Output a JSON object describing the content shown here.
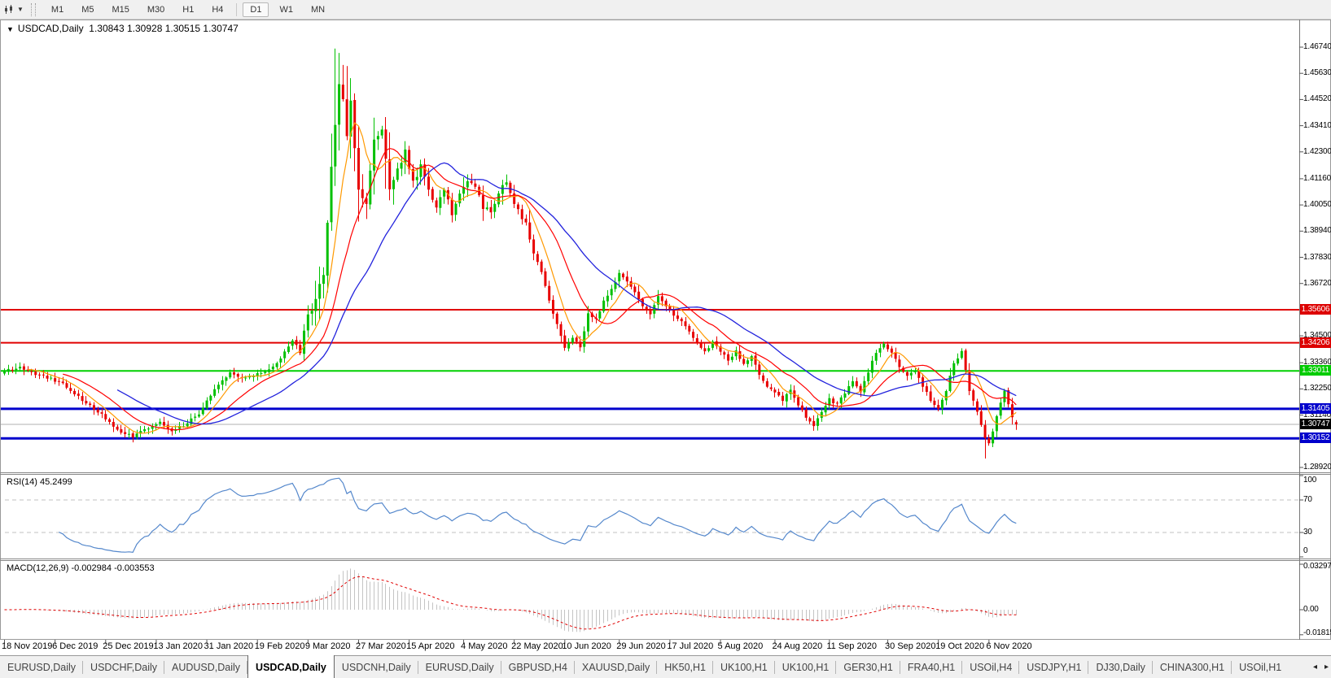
{
  "toolbar": {
    "chart_tool_icon": "chart-type-icon",
    "timeframes": [
      "M1",
      "M5",
      "M15",
      "M30",
      "H1",
      "H4",
      "D1",
      "W1",
      "MN"
    ],
    "active_timeframe": "D1"
  },
  "window": {
    "title_symbol": "USDCAD,Daily",
    "title_ohlc": "1.30843 1.30928 1.30515 1.30747"
  },
  "rsi_panel": {
    "label": "RSI(14) 45.2499"
  },
  "macd_panel": {
    "label": "MACD(12,26,9) -0.002984 -0.003553"
  },
  "colors": {
    "candle_up": "#00c000",
    "candle_down": "#e80000",
    "ma_fast": "#ff9900",
    "ma_mid": "#ff0000",
    "ma_slow": "#2323dd",
    "rsi_line": "#5588cc",
    "macd_hist": "#c4c4c4",
    "macd_signal": "#e00000",
    "level_red": "#e00000",
    "level_green": "#00d000",
    "level_blue": "#0000cc",
    "current_price_line": "#b0b0b0"
  },
  "chart_data": {
    "type": "candlestick",
    "symbol": "USDCAD",
    "timeframe": "Daily",
    "last_ohlc": {
      "open": 1.30843,
      "high": 1.30928,
      "low": 1.30515,
      "close": 1.30747
    },
    "y_axis_ticks": [
      "1.46740",
      "1.45630",
      "1.44520",
      "1.43410",
      "1.42300",
      "1.41160",
      "1.40050",
      "1.38940",
      "1.37830",
      "1.36720",
      "1.34500",
      "1.33360",
      "1.32250",
      "1.31140",
      "1.30030",
      "1.28920"
    ],
    "price_badges": [
      {
        "label": "1.35606",
        "bg": "#dd0000"
      },
      {
        "label": "1.34206",
        "bg": "#dd0000"
      },
      {
        "label": "1.33011",
        "bg": "#00cc00"
      },
      {
        "label": "1.31405",
        "bg": "#0000cc"
      },
      {
        "label": "1.30747",
        "bg": "#000000"
      },
      {
        "label": "1.30152",
        "bg": "#0000cc"
      }
    ],
    "horizontal_levels": [
      {
        "value": 1.35606,
        "color": "#e00000",
        "width": 2
      },
      {
        "value": 1.34206,
        "color": "#e00000",
        "width": 2
      },
      {
        "value": 1.33011,
        "color": "#00d000",
        "width": 2
      },
      {
        "value": 1.31405,
        "color": "#0000cc",
        "width": 3
      },
      {
        "value": 1.30747,
        "color": "#b0b0b0",
        "width": 1
      },
      {
        "value": 1.30152,
        "color": "#0000cc",
        "width": 3
      }
    ],
    "x_dates": [
      {
        "label": "18 Nov 2019",
        "i": 0
      },
      {
        "label": "6 Dec 2019",
        "i": 13
      },
      {
        "label": "25 Dec 2019",
        "i": 26
      },
      {
        "label": "13 Jan 2020",
        "i": 39
      },
      {
        "label": "31 Jan 2020",
        "i": 52
      },
      {
        "label": "19 Feb 2020",
        "i": 65
      },
      {
        "label": "9 Mar 2020",
        "i": 78
      },
      {
        "label": "27 Mar 2020",
        "i": 91
      },
      {
        "label": "15 Apr 2020",
        "i": 104
      },
      {
        "label": "4 May 2020",
        "i": 118
      },
      {
        "label": "22 May 2020",
        "i": 131
      },
      {
        "label": "10 Jun 2020",
        "i": 144
      },
      {
        "label": "29 Jun 2020",
        "i": 158
      },
      {
        "label": "17 Jul 2020",
        "i": 171
      },
      {
        "label": "5 Aug 2020",
        "i": 184
      },
      {
        "label": "24 Aug 2020",
        "i": 198
      },
      {
        "label": "11 Sep 2020",
        "i": 212
      },
      {
        "label": "30 Sep 2020",
        "i": 227
      },
      {
        "label": "19 Oct 2020",
        "i": 240
      },
      {
        "label": "6 Nov 2020",
        "i": 253
      }
    ],
    "close_anchors": [
      [
        0,
        1.33
      ],
      [
        4,
        1.3315
      ],
      [
        8,
        1.329
      ],
      [
        12,
        1.327
      ],
      [
        16,
        1.3235
      ],
      [
        20,
        1.318
      ],
      [
        24,
        1.313
      ],
      [
        27,
        1.3085
      ],
      [
        30,
        1.304
      ],
      [
        33,
        1.3025
      ],
      [
        36,
        1.3055
      ],
      [
        40,
        1.308
      ],
      [
        43,
        1.3045
      ],
      [
        46,
        1.307
      ],
      [
        50,
        1.312
      ],
      [
        54,
        1.3225
      ],
      [
        58,
        1.329
      ],
      [
        62,
        1.327
      ],
      [
        66,
        1.3295
      ],
      [
        70,
        1.333
      ],
      [
        74,
        1.343
      ],
      [
        76,
        1.338
      ],
      [
        78,
        1.356
      ],
      [
        80,
        1.359
      ],
      [
        82,
        1.372
      ],
      [
        84,
        1.418
      ],
      [
        86,
        1.45
      ],
      [
        87,
        1.445
      ],
      [
        88,
        1.43
      ],
      [
        89,
        1.443
      ],
      [
        91,
        1.408
      ],
      [
        93,
        1.402
      ],
      [
        95,
        1.428
      ],
      [
        97,
        1.433
      ],
      [
        99,
        1.409
      ],
      [
        101,
        1.415
      ],
      [
        103,
        1.423
      ],
      [
        105,
        1.41
      ],
      [
        107,
        1.417
      ],
      [
        109,
        1.406
      ],
      [
        111,
        1.399
      ],
      [
        113,
        1.407
      ],
      [
        115,
        1.397
      ],
      [
        117,
        1.406
      ],
      [
        119,
        1.411
      ],
      [
        121,
        1.409
      ],
      [
        123,
        1.4
      ],
      [
        125,
        1.397
      ],
      [
        127,
        1.405
      ],
      [
        129,
        1.411
      ],
      [
        131,
        1.401
      ],
      [
        134,
        1.392
      ],
      [
        136,
        1.38
      ],
      [
        138,
        1.372
      ],
      [
        140,
        1.36
      ],
      [
        142,
        1.35
      ],
      [
        144,
        1.34
      ],
      [
        146,
        1.344
      ],
      [
        148,
        1.34
      ],
      [
        150,
        1.354
      ],
      [
        152,
        1.352
      ],
      [
        154,
        1.36
      ],
      [
        156,
        1.365
      ],
      [
        158,
        1.371
      ],
      [
        160,
        1.368
      ],
      [
        162,
        1.363
      ],
      [
        164,
        1.3575
      ],
      [
        166,
        1.3545
      ],
      [
        168,
        1.362
      ],
      [
        170,
        1.3575
      ],
      [
        172,
        1.354
      ],
      [
        174,
        1.351
      ],
      [
        176,
        1.3465
      ],
      [
        178,
        1.3415
      ],
      [
        180,
        1.338
      ],
      [
        182,
        1.342
      ],
      [
        184,
        1.3385
      ],
      [
        186,
        1.335
      ],
      [
        188,
        1.3385
      ],
      [
        190,
        1.333
      ],
      [
        192,
        1.336
      ],
      [
        194,
        1.329
      ],
      [
        196,
        1.324
      ],
      [
        198,
        1.3215
      ],
      [
        200,
        1.318
      ],
      [
        202,
        1.3225
      ],
      [
        204,
        1.3155
      ],
      [
        206,
        1.3105
      ],
      [
        208,
        1.3065
      ],
      [
        210,
        1.313
      ],
      [
        212,
        1.318
      ],
      [
        214,
        1.316
      ],
      [
        216,
        1.3205
      ],
      [
        218,
        1.326
      ],
      [
        220,
        1.3215
      ],
      [
        222,
        1.33
      ],
      [
        224,
        1.338
      ],
      [
        226,
        1.342
      ],
      [
        228,
        1.3375
      ],
      [
        230,
        1.332
      ],
      [
        232,
        1.3275
      ],
      [
        234,
        1.3305
      ],
      [
        236,
        1.324
      ],
      [
        238,
        1.3175
      ],
      [
        240,
        1.314
      ],
      [
        242,
        1.322
      ],
      [
        244,
        1.333
      ],
      [
        246,
        1.338
      ],
      [
        247,
        1.33
      ],
      [
        248,
        1.3215
      ],
      [
        250,
        1.3125
      ],
      [
        252,
        1.302
      ],
      [
        253,
        1.2995
      ],
      [
        254,
        1.3045
      ],
      [
        255,
        1.311
      ],
      [
        256,
        1.3165
      ],
      [
        257,
        1.322
      ],
      [
        258,
        1.316
      ],
      [
        259,
        1.31
      ],
      [
        260,
        1.30747
      ]
    ],
    "spike_high": {
      "i": 85,
      "v": 1.4668
    },
    "spike_low": {
      "i": 252,
      "v": 1.293
    },
    "moving_averages": [
      {
        "period": 7,
        "color": "#ff9900"
      },
      {
        "period": 16,
        "color": "#ff0000"
      },
      {
        "period": 30,
        "color": "#2323dd"
      }
    ],
    "rsi": {
      "period": 14,
      "current": 45.2499,
      "ticks": [
        "100",
        "70",
        "30",
        "0"
      ],
      "dashed_levels": [
        70,
        30
      ]
    },
    "macd": {
      "fast": 12,
      "slow": 26,
      "signal": 9,
      "current": -0.002984,
      "signal_current": -0.003553,
      "ticks": [
        "0.032972",
        "0.00",
        "-0.01815"
      ]
    }
  },
  "tabs": {
    "items": [
      {
        "label": "EURUSD,Daily",
        "active": false
      },
      {
        "label": "USDCHF,Daily",
        "active": false
      },
      {
        "label": "AUDUSD,Daily",
        "active": false
      },
      {
        "label": "USDCAD,Daily",
        "active": true
      },
      {
        "label": "USDCNH,Daily",
        "active": false
      },
      {
        "label": "EURUSD,Daily",
        "active": false
      },
      {
        "label": "GBPUSD,H4",
        "active": false
      },
      {
        "label": "XAUUSD,Daily",
        "active": false
      },
      {
        "label": "HK50,H1",
        "active": false
      },
      {
        "label": "UK100,H1",
        "active": false
      },
      {
        "label": "UK100,H1",
        "active": false
      },
      {
        "label": "GER30,H1",
        "active": false
      },
      {
        "label": "FRA40,H1",
        "active": false
      },
      {
        "label": "USOil,H4",
        "active": false
      },
      {
        "label": "USDJPY,H1",
        "active": false
      },
      {
        "label": "DJ30,Daily",
        "active": false
      },
      {
        "label": "CHINA300,H1",
        "active": false
      },
      {
        "label": "USOil,H1",
        "active": false
      }
    ],
    "scroll_left": "◂",
    "scroll_right": "▸"
  }
}
